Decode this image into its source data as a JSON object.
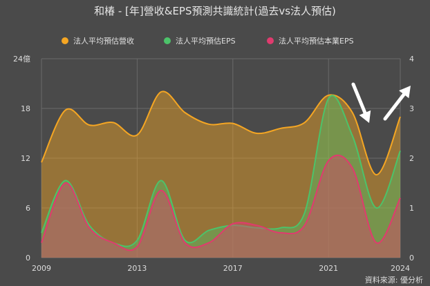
{
  "chart_data": {
    "type": "area",
    "title": "和椿 - [年]營收&EPS預測共識統計(過去vs法人預估)",
    "source": "資料來源: 優分析",
    "x": [
      2009,
      2010,
      2011,
      2012,
      2013,
      2014,
      2015,
      2016,
      2017,
      2018,
      2019,
      2020,
      2021,
      2022,
      2023,
      2024
    ],
    "x_ticks": [
      2009,
      2013,
      2017,
      2021,
      2024
    ],
    "ylim_left": [
      0,
      24
    ],
    "ylim_right": [
      0,
      4
    ],
    "left_ticks": [
      "0",
      "6",
      "12",
      "18",
      "24億"
    ],
    "right_ticks": [
      "0",
      "1",
      "2",
      "3",
      "4"
    ],
    "legend_position": "top",
    "grid": true,
    "series": [
      {
        "name": "法人平均預估營收",
        "axis": "left",
        "color": "#f5a623",
        "values": [
          11.5,
          17.8,
          16.0,
          16.3,
          14.8,
          20.0,
          17.5,
          16.1,
          16.2,
          15.0,
          15.6,
          16.3,
          19.6,
          17.5,
          10.0,
          17.0
        ]
      },
      {
        "name": "法人平均預估EPS",
        "axis": "right",
        "color": "#4cc36a",
        "values": [
          0.5,
          1.55,
          0.65,
          0.3,
          0.35,
          1.55,
          0.35,
          0.55,
          0.65,
          0.6,
          0.6,
          0.9,
          3.2,
          2.45,
          1.0,
          2.15
        ]
      },
      {
        "name": "法人平均預估本業EPS",
        "axis": "right",
        "color": "#e03b6e",
        "values": [
          0.3,
          1.5,
          0.6,
          0.3,
          0.22,
          1.35,
          0.3,
          0.3,
          0.68,
          0.65,
          0.5,
          0.65,
          1.95,
          1.8,
          0.3,
          1.2
        ]
      }
    ]
  }
}
